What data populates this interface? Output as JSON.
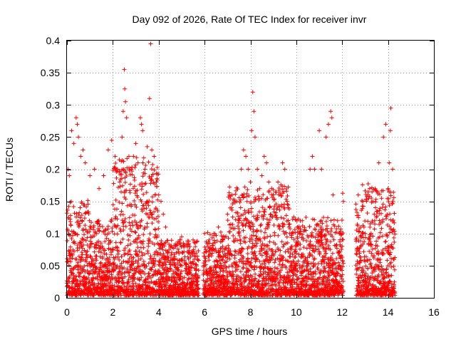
{
  "chart_data": {
    "type": "scatter",
    "title": "Day 092 of 2026, Rate Of TEC Index for receiver invr",
    "xlabel": "GPS time / hours",
    "ylabel": "ROTI / TECUs",
    "xlim": [
      0,
      16
    ],
    "ylim": [
      0,
      0.4
    ],
    "xticks": [
      0,
      2,
      4,
      6,
      8,
      10,
      12,
      14,
      16
    ],
    "yticks": [
      0,
      0.05,
      0.1,
      0.15,
      0.2,
      0.25,
      0.3,
      0.35,
      0.4
    ],
    "xtick_labels": [
      "0",
      "2",
      "4",
      "6",
      "8",
      "10",
      "12",
      "14",
      "16"
    ],
    "ytick_labels": [
      "0",
      "0.05",
      "0.1",
      "0.15",
      "0.2",
      "0.25",
      "0.3",
      "0.35",
      "0.4"
    ],
    "grid": true,
    "marker": "+",
    "color": "#ff0000",
    "data_coverage": [
      {
        "start": 0.0,
        "end": 5.75
      },
      {
        "start": 5.95,
        "end": 12.05
      },
      {
        "start": 12.6,
        "end": 14.3
      }
    ],
    "series": [
      {
        "name": "ROTI",
        "points": [
          [
            0.05,
            0.2
          ],
          [
            0.1,
            0.19
          ],
          [
            0.2,
            0.26
          ],
          [
            0.3,
            0.24
          ],
          [
            0.4,
            0.28
          ],
          [
            0.45,
            0.27
          ],
          [
            0.5,
            0.25
          ],
          [
            0.6,
            0.22
          ],
          [
            0.7,
            0.23
          ],
          [
            0.8,
            0.21
          ],
          [
            1.0,
            0.19
          ],
          [
            1.2,
            0.2
          ],
          [
            1.4,
            0.17
          ],
          [
            1.6,
            0.19
          ],
          [
            1.8,
            0.23
          ],
          [
            1.95,
            0.245
          ],
          [
            2.1,
            0.22
          ],
          [
            2.2,
            0.2
          ],
          [
            2.3,
            0.18
          ],
          [
            2.4,
            0.25
          ],
          [
            2.45,
            0.29
          ],
          [
            2.5,
            0.355
          ],
          [
            2.52,
            0.325
          ],
          [
            2.55,
            0.305
          ],
          [
            2.6,
            0.28
          ],
          [
            2.7,
            0.22
          ],
          [
            2.8,
            0.2
          ],
          [
            2.9,
            0.22
          ],
          [
            3.0,
            0.24
          ],
          [
            3.1,
            0.21
          ],
          [
            3.2,
            0.28
          ],
          [
            3.25,
            0.27
          ],
          [
            3.3,
            0.26
          ],
          [
            3.4,
            0.2
          ],
          [
            3.5,
            0.235
          ],
          [
            3.6,
            0.31
          ],
          [
            3.65,
            0.395
          ],
          [
            3.7,
            0.23
          ],
          [
            3.8,
            0.22
          ],
          [
            3.9,
            0.18
          ],
          [
            4.0,
            0.16
          ],
          [
            4.1,
            0.15
          ],
          [
            4.2,
            0.13
          ],
          [
            4.3,
            0.11
          ],
          [
            4.5,
            0.08
          ],
          [
            4.7,
            0.06
          ],
          [
            5.0,
            0.095
          ],
          [
            5.3,
            0.07
          ],
          [
            5.5,
            0.09
          ],
          [
            5.7,
            0.06
          ],
          [
            6.0,
            0.1
          ],
          [
            6.2,
            0.09
          ],
          [
            6.4,
            0.1
          ],
          [
            6.6,
            0.11
          ],
          [
            6.8,
            0.09
          ],
          [
            7.0,
            0.13
          ],
          [
            7.2,
            0.16
          ],
          [
            7.4,
            0.15
          ],
          [
            7.6,
            0.2
          ],
          [
            7.7,
            0.23
          ],
          [
            7.8,
            0.22
          ],
          [
            7.9,
            0.2
          ],
          [
            8.0,
            0.18
          ],
          [
            8.05,
            0.26
          ],
          [
            8.1,
            0.32
          ],
          [
            8.15,
            0.29
          ],
          [
            8.2,
            0.25
          ],
          [
            8.3,
            0.2
          ],
          [
            8.4,
            0.17
          ],
          [
            8.5,
            0.19
          ],
          [
            8.6,
            0.22
          ],
          [
            8.7,
            0.21
          ],
          [
            8.8,
            0.18
          ],
          [
            9.0,
            0.16
          ],
          [
            9.2,
            0.18
          ],
          [
            9.4,
            0.21
          ],
          [
            9.5,
            0.2
          ],
          [
            9.6,
            0.15
          ],
          [
            9.8,
            0.1
          ],
          [
            10.0,
            0.08
          ],
          [
            10.3,
            0.09
          ],
          [
            10.6,
            0.2
          ],
          [
            10.7,
            0.22
          ],
          [
            10.8,
            0.2
          ],
          [
            11.0,
            0.26
          ],
          [
            11.1,
            0.2
          ],
          [
            11.3,
            0.25
          ],
          [
            11.4,
            0.27
          ],
          [
            11.5,
            0.29
          ],
          [
            11.55,
            0.28
          ],
          [
            11.6,
            0.16
          ],
          [
            11.8,
            0.12
          ],
          [
            12.0,
            0.08
          ],
          [
            12.7,
            0.16
          ],
          [
            12.9,
            0.15
          ],
          [
            13.0,
            0.1
          ],
          [
            13.2,
            0.17
          ],
          [
            13.4,
            0.13
          ],
          [
            13.6,
            0.21
          ],
          [
            13.8,
            0.25
          ],
          [
            13.9,
            0.27
          ],
          [
            14.0,
            0.17
          ],
          [
            14.05,
            0.21
          ],
          [
            14.1,
            0.26
          ],
          [
            14.12,
            0.295
          ],
          [
            14.2,
            0.2
          ]
        ]
      }
    ]
  }
}
